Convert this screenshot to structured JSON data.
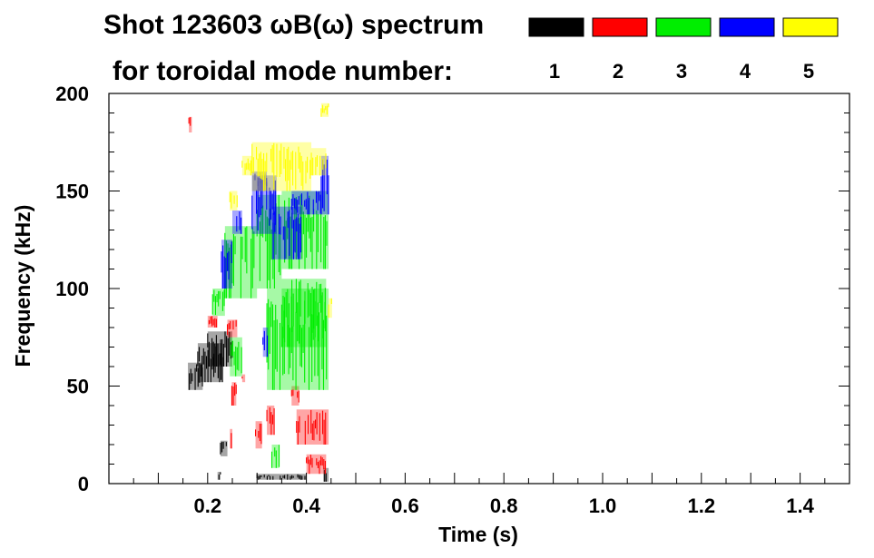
{
  "chart_data": {
    "type": "scatter",
    "title_line1": "Shot 123603 ωB(ω) spectrum",
    "title_line2": "for toroidal mode number:",
    "xlabel": "Time (s)",
    "ylabel": "Frequency (kHz)",
    "xlim": [
      0.0,
      1.5
    ],
    "ylim": [
      0,
      200
    ],
    "xticks": [
      0.2,
      0.4,
      0.6,
      0.8,
      1.0,
      1.2,
      1.4
    ],
    "xtick_labels": [
      "0.2",
      "0.4",
      "0.6",
      "0.8",
      "1.0",
      "1.2",
      "1.4"
    ],
    "yticks": [
      0,
      50,
      100,
      150,
      200
    ],
    "ytick_labels": [
      "0",
      "50",
      "100",
      "150",
      "200"
    ],
    "grid": false,
    "legend_position": "top-right",
    "series": [
      {
        "name": "1",
        "color": "#000000",
        "regions": [
          {
            "t": [
              0.16,
              0.19
            ],
            "f": [
              48,
              62
            ]
          },
          {
            "t": [
              0.18,
              0.23
            ],
            "f": [
              52,
              72
            ]
          },
          {
            "t": [
              0.2,
              0.25
            ],
            "f": [
              60,
              78
            ]
          },
          {
            "t": [
              0.226,
              0.24
            ],
            "f": [
              14,
              22
            ]
          },
          {
            "t": [
              0.22,
              0.226
            ],
            "f": [
              2,
              6
            ]
          },
          {
            "t": [
              0.3,
              0.4
            ],
            "f": [
              2,
              5
            ]
          },
          {
            "t": [
              0.434,
              0.445
            ],
            "f": [
              1,
              8
            ]
          }
        ]
      },
      {
        "name": "2",
        "color": "#ff0000",
        "regions": [
          {
            "t": [
              0.162,
              0.168
            ],
            "f": [
              180,
              188
            ]
          },
          {
            "t": [
              0.2,
              0.22
            ],
            "f": [
              80,
              86
            ]
          },
          {
            "t": [
              0.24,
              0.26
            ],
            "f": [
              75,
              84
            ]
          },
          {
            "t": [
              0.249,
              0.258
            ],
            "f": [
              40,
              52
            ]
          },
          {
            "t": [
              0.245,
              0.25
            ],
            "f": [
              18,
              28
            ]
          },
          {
            "t": [
              0.27,
              0.276
            ],
            "f": [
              52,
              56
            ]
          },
          {
            "t": [
              0.297,
              0.31
            ],
            "f": [
              18,
              32
            ]
          },
          {
            "t": [
              0.32,
              0.335
            ],
            "f": [
              25,
              40
            ]
          },
          {
            "t": [
              0.37,
              0.385
            ],
            "f": [
              40,
              50
            ]
          },
          {
            "t": [
              0.38,
              0.445
            ],
            "f": [
              20,
              38
            ]
          },
          {
            "t": [
              0.4,
              0.44
            ],
            "f": [
              5,
              15
            ]
          }
        ]
      },
      {
        "name": "3",
        "color": "#00ee00",
        "regions": [
          {
            "t": [
              0.21,
              0.235
            ],
            "f": [
              86,
              100
            ]
          },
          {
            "t": [
              0.235,
              0.3
            ],
            "f": [
              95,
              132
            ]
          },
          {
            "t": [
              0.245,
              0.27
            ],
            "f": [
              55,
              75
            ]
          },
          {
            "t": [
              0.3,
              0.35
            ],
            "f": [
              100,
              148
            ]
          },
          {
            "t": [
              0.32,
              0.445
            ],
            "f": [
              48,
              100
            ]
          },
          {
            "t": [
              0.35,
              0.44
            ],
            "f": [
              70,
              105
            ]
          },
          {
            "t": [
              0.35,
              0.445
            ],
            "f": [
              110,
              150
            ]
          },
          {
            "t": [
              0.33,
              0.345
            ],
            "f": [
              8,
              20
            ]
          }
        ]
      },
      {
        "name": "4",
        "color": "#0000ff",
        "regions": [
          {
            "t": [
              0.228,
              0.25
            ],
            "f": [
              100,
              125
            ]
          },
          {
            "t": [
              0.25,
              0.27
            ],
            "f": [
              128,
              140
            ]
          },
          {
            "t": [
              0.29,
              0.34
            ],
            "f": [
              128,
              158
            ]
          },
          {
            "t": [
              0.29,
              0.32
            ],
            "f": [
              150,
              160
            ]
          },
          {
            "t": [
              0.33,
              0.39
            ],
            "f": [
              115,
              142
            ]
          },
          {
            "t": [
              0.37,
              0.43
            ],
            "f": [
              138,
              150
            ]
          },
          {
            "t": [
              0.43,
              0.445
            ],
            "f": [
              138,
              168
            ]
          },
          {
            "t": [
              0.312,
              0.322
            ],
            "f": [
              65,
              80
            ]
          }
        ]
      },
      {
        "name": "5",
        "color": "#ffff00",
        "regions": [
          {
            "t": [
              0.245,
              0.26
            ],
            "f": [
              140,
              150
            ]
          },
          {
            "t": [
              0.27,
              0.29
            ],
            "f": [
              158,
              168
            ]
          },
          {
            "t": [
              0.29,
              0.41
            ],
            "f": [
              150,
              175
            ]
          },
          {
            "t": [
              0.41,
              0.44
            ],
            "f": [
              158,
              172
            ]
          },
          {
            "t": [
              0.43,
              0.445
            ],
            "f": [
              188,
              195
            ]
          },
          {
            "t": [
              0.445,
              0.452
            ],
            "f": [
              85,
              95
            ]
          }
        ]
      }
    ]
  }
}
